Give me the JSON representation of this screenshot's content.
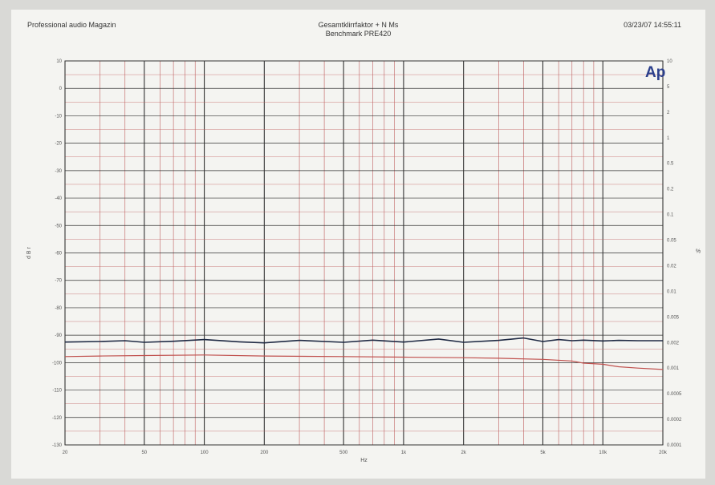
{
  "header": {
    "left": "Professional audio Magazin",
    "center_line1": "Gesamtklirrfaktor + N Ms",
    "center_line2": "Benchmark PRE420",
    "right": "03/23/07 14:55:11"
  },
  "logo_text": "Ap",
  "colors": {
    "noise_series": "#1f2a44",
    "distortion_series": "#c0504d",
    "grid_major": "#333333",
    "grid_minor": "#c06060"
  },
  "chart_data": {
    "type": "line",
    "x_scale": "log",
    "xlim": [
      20,
      20000
    ],
    "xlabel": "Hz",
    "x_ticks": [
      {
        "value": 20,
        "label": "20"
      },
      {
        "value": 50,
        "label": "50"
      },
      {
        "value": 100,
        "label": "100"
      },
      {
        "value": 200,
        "label": "200"
      },
      {
        "value": 500,
        "label": "500"
      },
      {
        "value": 1000,
        "label": "1k"
      },
      {
        "value": 2000,
        "label": "2k"
      },
      {
        "value": 5000,
        "label": "5k"
      },
      {
        "value": 10000,
        "label": "10k"
      },
      {
        "value": 20000,
        "label": "20k"
      }
    ],
    "ylabel_left": "d B r",
    "ylim_left": [
      -130,
      10
    ],
    "y_ticks_left": [
      "10",
      "0",
      "-10",
      "-20",
      "-30",
      "-40",
      "-50",
      "-60",
      "-70",
      "-80",
      "-90",
      "-100",
      "-110",
      "-120",
      "-130"
    ],
    "ylabel_right": "%",
    "y_ticks_right": [
      "10",
      "5",
      "2",
      "1",
      "0.5",
      "0.2",
      "0.1",
      "0.05",
      "0.02",
      "0.01",
      "0.005",
      "0.002",
      "0.001",
      "0.0005",
      "0.0002",
      "0.0001"
    ],
    "grid": true,
    "series": [
      {
        "x": [
          20,
          30,
          40,
          50,
          70,
          100,
          150,
          200,
          300,
          500,
          700,
          1000,
          1500,
          2000,
          3000,
          4000,
          5000,
          6000,
          7000,
          8000,
          10000,
          12000,
          15000,
          20000
        ],
        "values": [
          -92.5,
          -92.3,
          -92.0,
          -92.6,
          -92.2,
          -91.6,
          -92.4,
          -92.8,
          -91.9,
          -92.6,
          -91.8,
          -92.5,
          -91.4,
          -92.6,
          -91.9,
          -91.0,
          -92.3,
          -91.6,
          -92.0,
          -91.8,
          -92.1,
          -91.9,
          -92.0,
          -92.0
        ]
      },
      {
        "x": [
          20,
          30,
          50,
          100,
          200,
          500,
          1000,
          2000,
          3000,
          5000,
          7000,
          8000,
          10000,
          12000,
          15000,
          20000
        ],
        "values": [
          -97.8,
          -97.6,
          -97.4,
          -97.2,
          -97.6,
          -97.8,
          -98.0,
          -98.2,
          -98.4,
          -98.8,
          -99.4,
          -100.2,
          -100.6,
          -101.5,
          -102.0,
          -102.5
        ]
      }
    ]
  }
}
